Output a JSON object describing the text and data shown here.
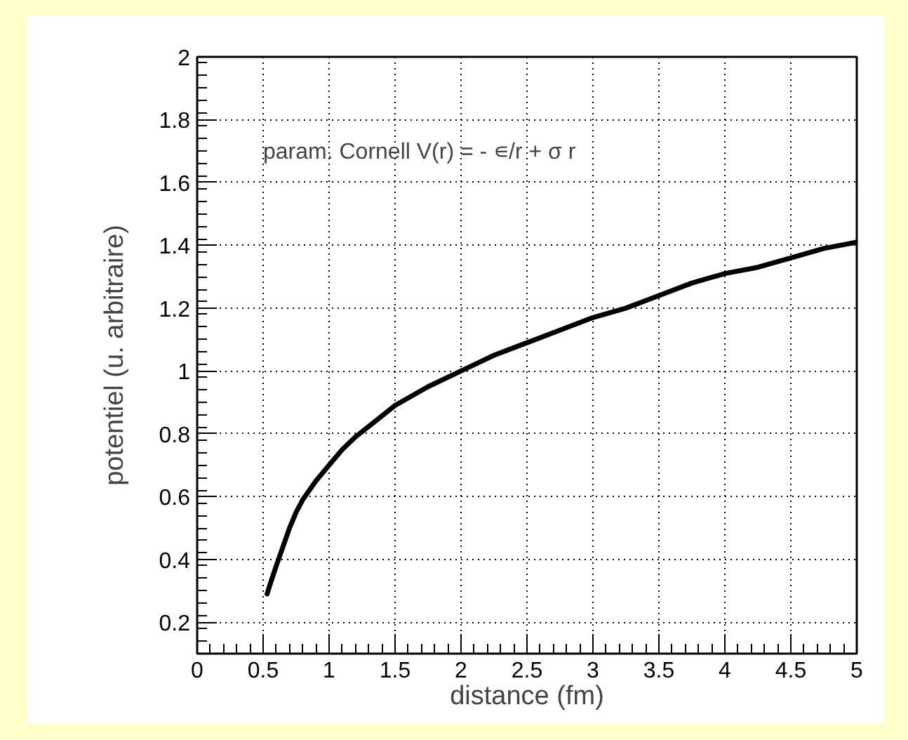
{
  "chart_data": {
    "type": "line",
    "xlabel": "distance (fm)",
    "ylabel": "potentiel (u. arbitraire)",
    "annotations": [
      "param. Cornell V(r) = - ∊/r + σ r"
    ],
    "xlim": [
      0,
      5
    ],
    "ylim": [
      0.1,
      2
    ],
    "xticks": [
      0,
      0.5,
      1,
      1.5,
      2,
      2.5,
      3,
      3.5,
      4,
      4.5,
      5
    ],
    "yticks": [
      0.2,
      0.4,
      0.6,
      0.8,
      1,
      1.2,
      1.4,
      1.6,
      1.8,
      2
    ],
    "grid": true,
    "marker": "none",
    "line_style": "solid",
    "series": [
      {
        "color": "#000000",
        "x": [
          0.53,
          0.56,
          0.6,
          0.65,
          0.7,
          0.75,
          0.8,
          0.9,
          1.0,
          1.1,
          1.2,
          1.35,
          1.5,
          1.75,
          2.0,
          2.25,
          2.5,
          2.75,
          3.0,
          3.25,
          3.5,
          3.75,
          4.0,
          4.25,
          4.5,
          4.75,
          5.0
        ],
        "values": [
          0.29,
          0.33,
          0.38,
          0.44,
          0.5,
          0.55,
          0.59,
          0.65,
          0.7,
          0.75,
          0.79,
          0.84,
          0.89,
          0.95,
          1.0,
          1.05,
          1.09,
          1.13,
          1.17,
          1.2,
          1.24,
          1.28,
          1.31,
          1.33,
          1.36,
          1.39,
          1.41
        ]
      }
    ]
  }
}
